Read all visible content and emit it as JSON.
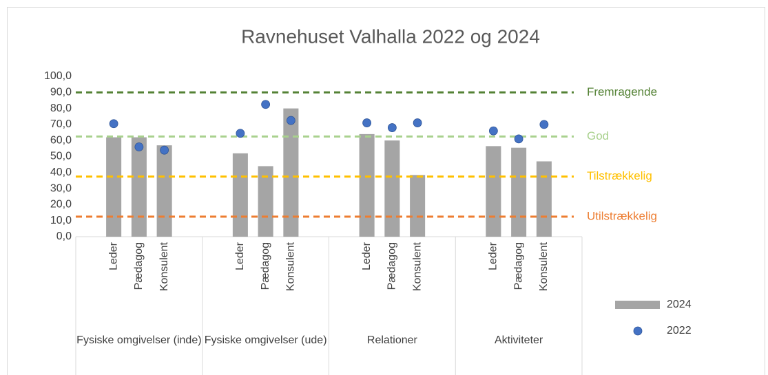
{
  "chart_data": {
    "type": "bar",
    "title": "Ravnehuset Valhalla 2022 og 2024",
    "groups": [
      {
        "name": "Fysiske omgivelser (inde)",
        "categories": [
          "Leder",
          "Pædagog",
          "Konsulent"
        ]
      },
      {
        "name": "Fysiske omgivelser (ude)",
        "categories": [
          "Leder",
          "Pædagog",
          "Konsulent"
        ]
      },
      {
        "name": "Relationer",
        "categories": [
          "Leder",
          "Pædagog",
          "Konsulent"
        ]
      },
      {
        "name": "Aktiviteter",
        "categories": [
          "Leder",
          "Pædagog",
          "Konsulent"
        ]
      }
    ],
    "series": [
      {
        "name": "2024",
        "type": "bar",
        "color": "#a5a5a5",
        "values": [
          62,
          62,
          57,
          52,
          44,
          80,
          64,
          60,
          38.5,
          56.5,
          55.5,
          47
        ]
      },
      {
        "name": "2022",
        "type": "scatter",
        "color": "#4472c4",
        "values": [
          70.5,
          56,
          54,
          64.5,
          82.5,
          72.5,
          71,
          68,
          71,
          66,
          61,
          70
        ]
      }
    ],
    "reference_lines": [
      {
        "name": "Fremragende",
        "value": 90,
        "color": "#548235"
      },
      {
        "name": "God",
        "value": 62.5,
        "color": "#a9d18e"
      },
      {
        "name": "Tilstrækkelig",
        "value": 37.5,
        "color": "#ffc000"
      },
      {
        "name": "Utilstrækkelig",
        "value": 12.5,
        "color": "#ed7d31"
      }
    ],
    "ylim": [
      0,
      100
    ],
    "yticks": [
      {
        "value": 0,
        "label": "0,0"
      },
      {
        "value": 10,
        "label": "10,0"
      },
      {
        "value": 20,
        "label": "20,0"
      },
      {
        "value": 30,
        "label": "30,0"
      },
      {
        "value": 40,
        "label": "40,0"
      },
      {
        "value": 50,
        "label": "50,0"
      },
      {
        "value": 60,
        "label": "60,0"
      },
      {
        "value": 70,
        "label": "70,0"
      },
      {
        "value": 80,
        "label": "80,0"
      },
      {
        "value": 90,
        "label": "90,0"
      },
      {
        "value": 100,
        "label": "100,0"
      }
    ],
    "legend": "right"
  }
}
